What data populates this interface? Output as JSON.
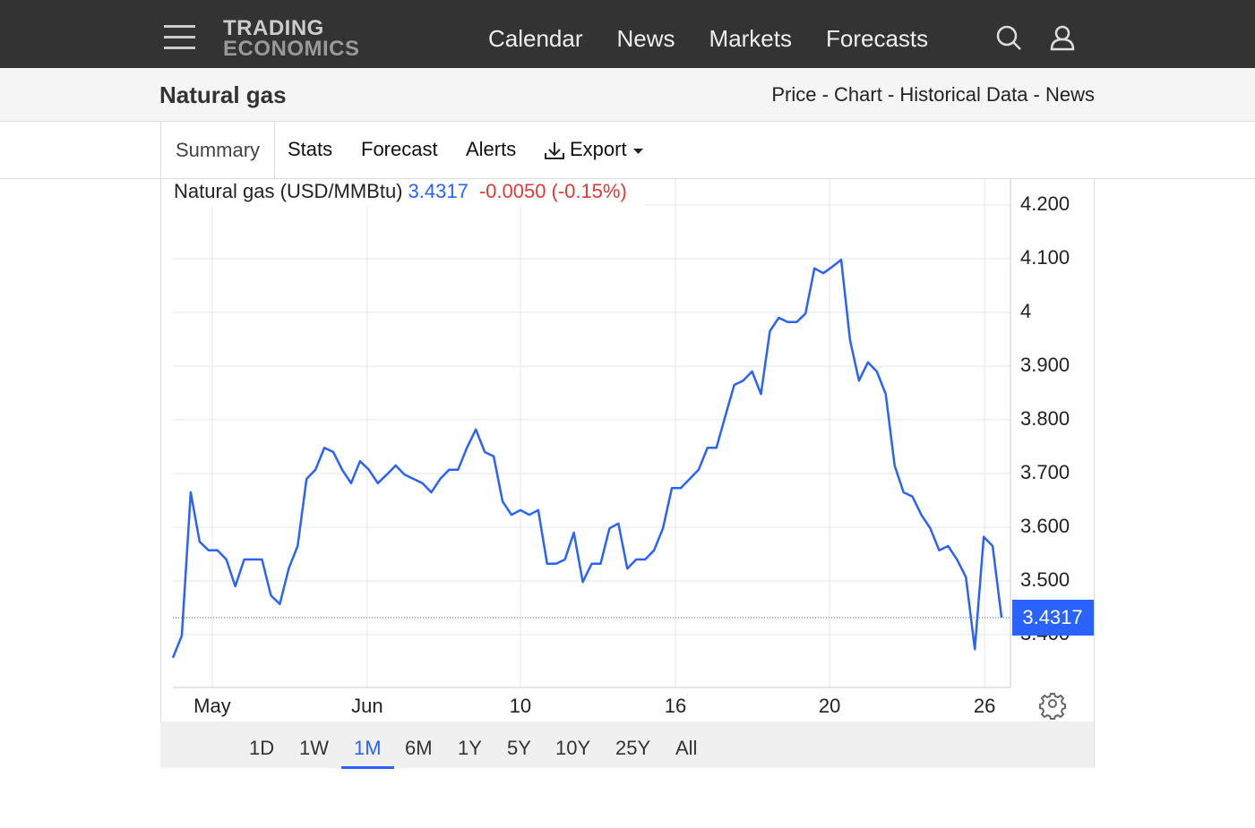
{
  "nav": {
    "logo_top": "TRADING",
    "logo_bottom": "ECONOMICS",
    "links": [
      "Calendar",
      "News",
      "Markets",
      "Forecasts"
    ]
  },
  "header": {
    "title": "Natural gas",
    "breadcrumb": "Price - Chart - Historical Data - News"
  },
  "tabs": [
    "Summary",
    "Stats",
    "Forecast",
    "Alerts",
    "Export"
  ],
  "chart_data": {
    "type": "line",
    "series": [
      {
        "name": "Natural gas (USD/MMBtu)",
        "color": "#2962ff",
        "values": [
          3.357,
          3.398,
          3.665,
          3.573,
          3.557,
          3.557,
          3.54,
          3.49,
          3.54,
          3.54,
          3.54,
          3.473,
          3.457,
          3.523,
          3.565,
          3.69,
          3.707,
          3.748,
          3.74,
          3.707,
          3.682,
          3.723,
          3.707,
          3.682,
          3.698,
          3.715,
          3.698,
          3.69,
          3.682,
          3.665,
          3.69,
          3.707,
          3.707,
          3.748,
          3.782,
          3.74,
          3.732,
          3.648,
          3.623,
          3.632,
          3.623,
          3.632,
          3.532,
          3.532,
          3.54,
          3.59,
          3.498,
          3.532,
          3.532,
          3.598,
          3.607,
          3.523,
          3.54,
          3.54,
          3.557,
          3.598,
          3.673,
          3.673,
          3.69,
          3.707,
          3.748,
          3.748,
          3.807,
          3.865,
          3.873,
          3.89,
          3.848,
          3.965,
          3.99,
          3.982,
          3.982,
          3.998,
          4.082,
          4.073,
          4.085,
          4.098,
          3.948,
          3.873,
          3.907,
          3.89,
          3.848,
          3.715,
          3.665,
          3.657,
          3.623,
          3.598,
          3.557,
          3.565,
          3.54,
          3.507,
          3.373,
          3.582,
          3.565,
          3.4317
        ]
      }
    ],
    "change": "-0.0050",
    "change_pct": "(-0.15%)",
    "xlim": [
      0,
      94.0
    ],
    "xticks": [
      {
        "value": 4.42,
        "label": "May"
      },
      {
        "value": 21.8,
        "label": "Jun"
      },
      {
        "value": 39.0,
        "label": "10"
      },
      {
        "value": 56.4,
        "label": "16"
      },
      {
        "value": 73.7,
        "label": "20"
      },
      {
        "value": 91.1,
        "label": "26"
      }
    ],
    "ylim": [
      3.3017,
      4.2483
    ],
    "yticks": [
      {
        "value": 3.4,
        "label": "3.400"
      },
      {
        "value": 3.5,
        "label": "3.500"
      },
      {
        "value": 3.6,
        "label": "3.600"
      },
      {
        "value": 3.7,
        "label": "3.700"
      },
      {
        "value": 3.8,
        "label": "3.800"
      },
      {
        "value": 3.9,
        "label": "3.900"
      },
      4,
      {
        "value": 4.1,
        "label": "4.100"
      },
      {
        "value": 4.2,
        "label": "4.200"
      }
    ],
    "grid": true
  },
  "ranges": {
    "options": [
      "1D",
      "1W",
      "1M",
      "6M",
      "1Y",
      "5Y",
      "10Y",
      "25Y",
      "All"
    ],
    "selected": 2
  }
}
